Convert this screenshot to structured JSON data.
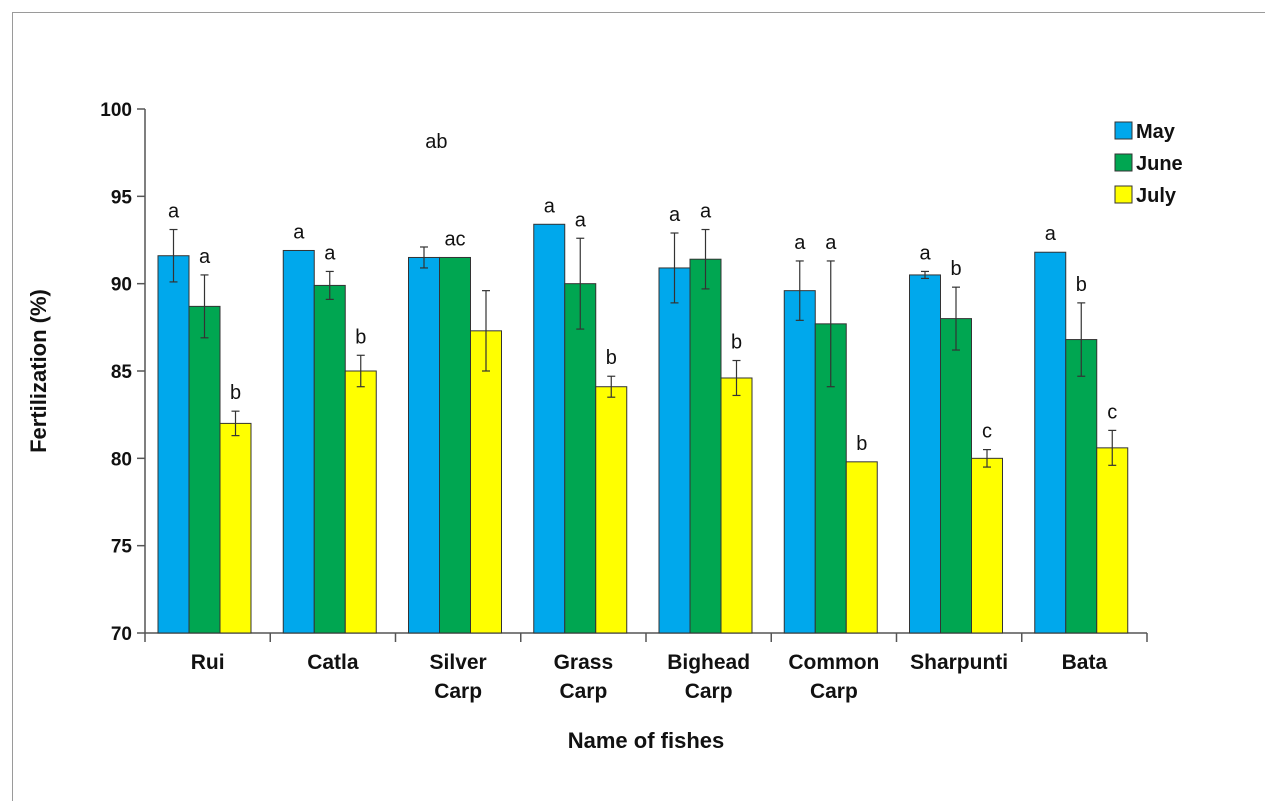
{
  "chart_data": {
    "type": "bar",
    "xlabel": "Name of fishes",
    "ylabel": "Fertilization (%)",
    "ylim": [
      70,
      100
    ],
    "yticks": [
      70,
      75,
      80,
      85,
      90,
      95,
      100
    ],
    "grid": false,
    "legend_position": "top-right",
    "categories": [
      [
        "Rui"
      ],
      [
        "Catla"
      ],
      [
        "Silver",
        "Carp"
      ],
      [
        "Grass",
        "Carp"
      ],
      [
        "Bighead",
        "Carp"
      ],
      [
        "Common",
        "Carp"
      ],
      [
        "Sharpunti"
      ],
      [
        "Bata"
      ]
    ],
    "series": [
      {
        "name": "May",
        "color": "#00a8ec",
        "values": [
          91.6,
          91.9,
          91.5,
          93.4,
          90.9,
          89.6,
          90.5,
          91.8
        ],
        "errors": [
          1.5,
          0.0,
          0.6,
          0.0,
          2.0,
          1.7,
          0.2,
          0.0
        ],
        "labels": [
          "a",
          "a",
          "",
          "a",
          "a",
          "a",
          "a",
          "a"
        ]
      },
      {
        "name": "June",
        "color": "#00a651",
        "values": [
          88.7,
          89.9,
          91.5,
          90.0,
          91.4,
          87.7,
          88.0,
          86.8
        ],
        "errors": [
          1.8,
          0.8,
          0.0,
          2.6,
          1.7,
          3.6,
          1.8,
          2.1
        ],
        "labels": [
          "a",
          "a",
          "ac",
          "a",
          "a",
          "a",
          "b",
          "b"
        ]
      },
      {
        "name": "July",
        "color": "#ffff00",
        "values": [
          82.0,
          85.0,
          87.3,
          84.1,
          84.6,
          79.8,
          80.0,
          80.6
        ],
        "errors": [
          0.7,
          0.9,
          2.3,
          0.6,
          1.0,
          0.0,
          0.5,
          1.0
        ],
        "labels": [
          "b",
          "b",
          "",
          "b",
          "b",
          "b",
          "c",
          "c"
        ]
      }
    ],
    "extra_labels": [
      "ab"
    ]
  }
}
